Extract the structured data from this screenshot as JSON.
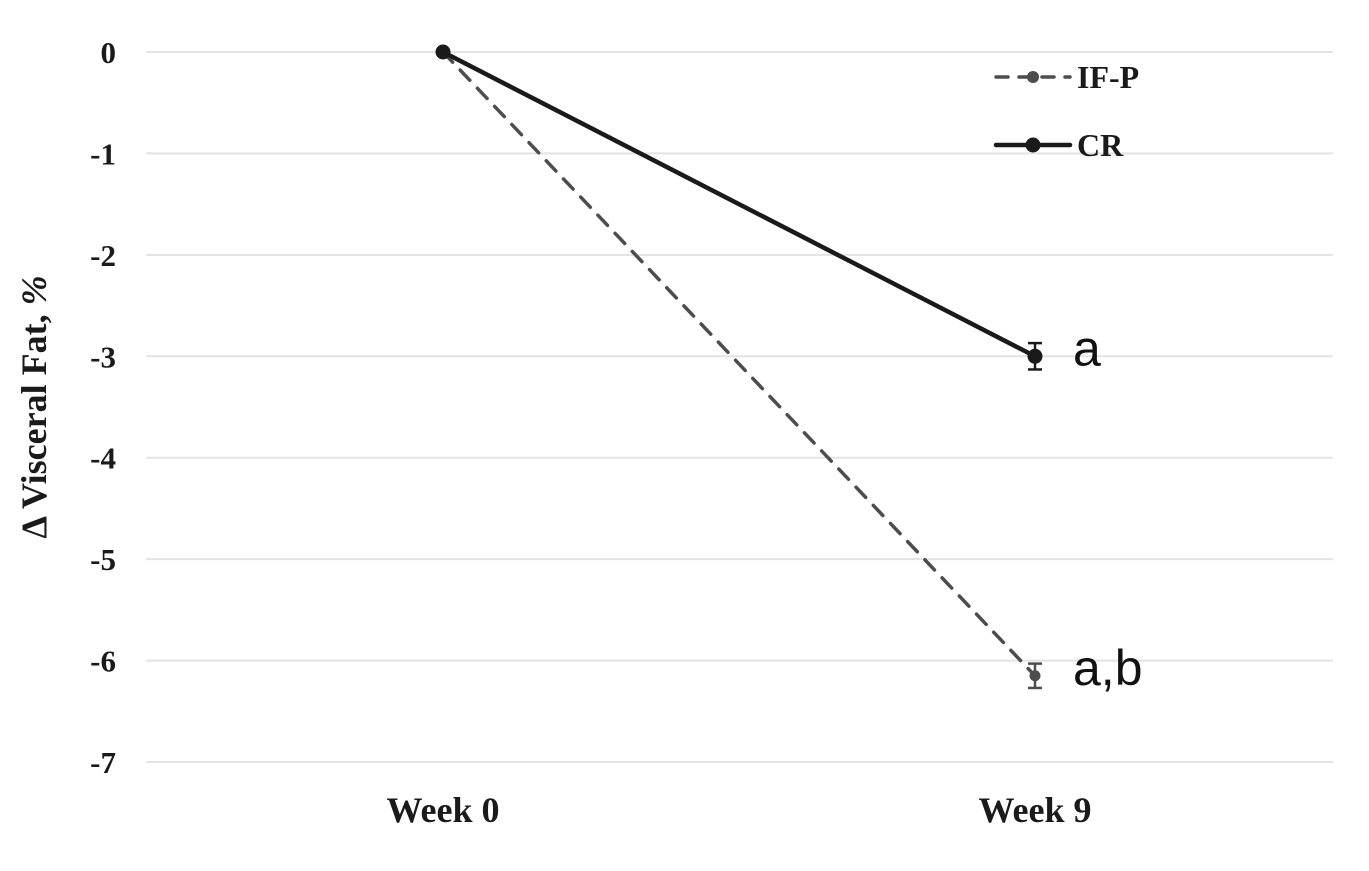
{
  "figure": {
    "background": "#ffffff"
  },
  "chart_data": {
    "type": "line",
    "title": "",
    "categories": [
      "Week 0",
      "Week 9"
    ],
    "series": [
      {
        "name": "IF-P",
        "values": [
          0,
          -6.15
        ],
        "error_bars": [
          null,
          0.12
        ],
        "color": "#4d4d4d",
        "line_style": "dashed",
        "marker": "circle",
        "annotation": "a,b"
      },
      {
        "name": "CR",
        "values": [
          0,
          -3.0
        ],
        "error_bars": [
          null,
          0.13
        ],
        "color": "#1a1a1a",
        "line_style": "solid",
        "marker": "circle",
        "annotation": "a"
      }
    ],
    "xlabel": "",
    "ylabel": "Δ Visceral Fat, %",
    "ylim": [
      -7,
      0
    ],
    "yticks": [
      0,
      -1,
      -2,
      -3,
      -4,
      -5,
      -6,
      -7
    ],
    "grid": true,
    "gridline_color": "#e3e3e3",
    "legend": {
      "position": "top-right",
      "entries": [
        "IF-P",
        "CR"
      ]
    }
  }
}
